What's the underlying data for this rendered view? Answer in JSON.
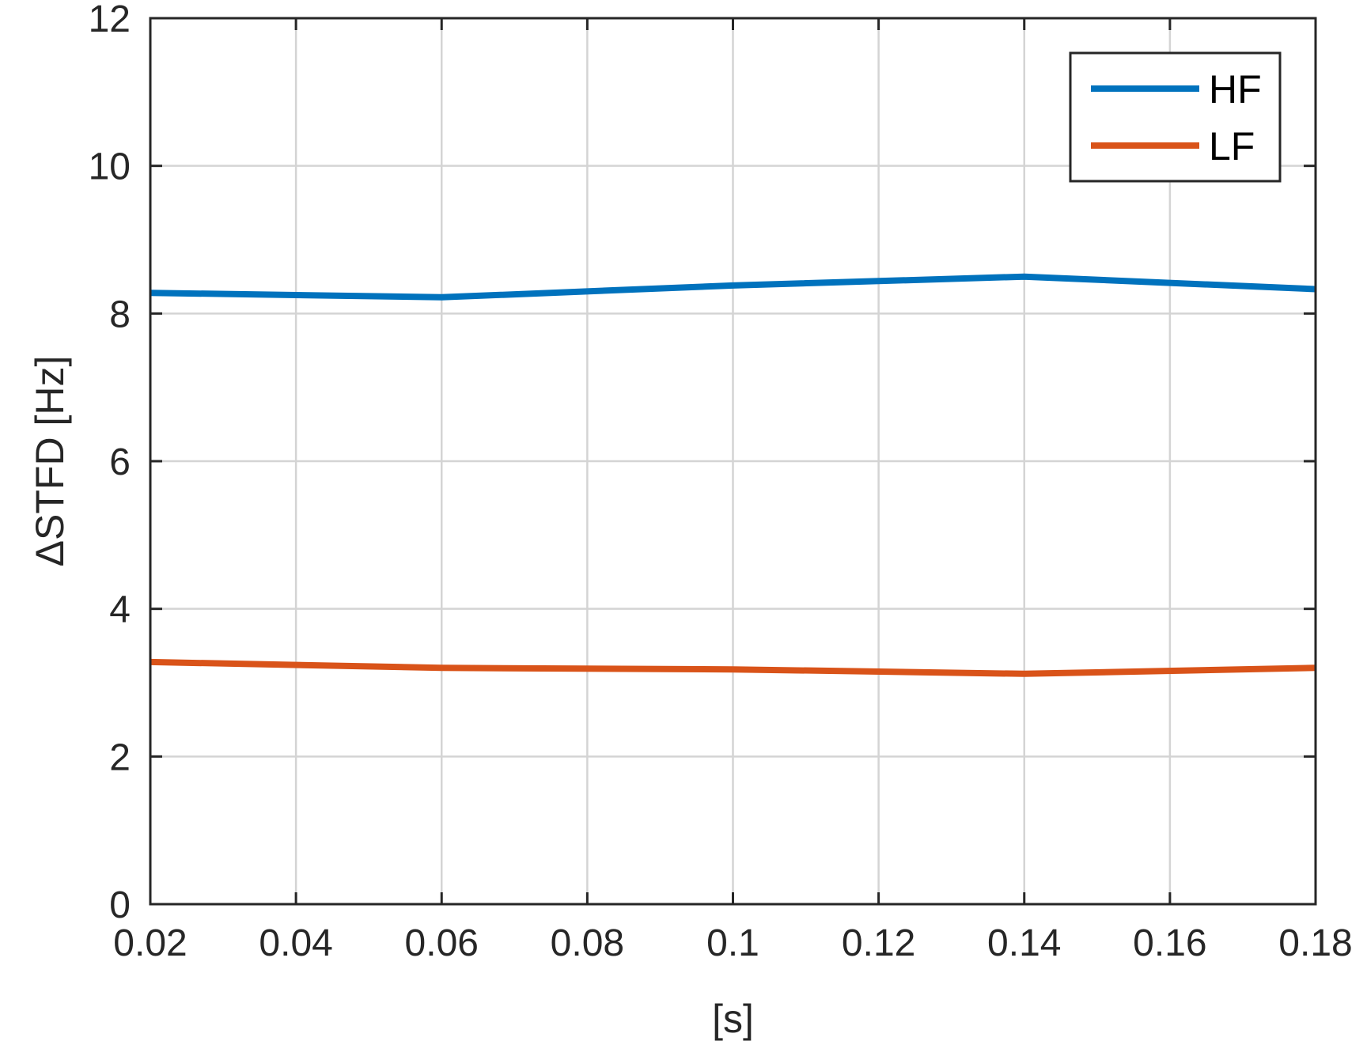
{
  "chart_data": {
    "type": "line",
    "xlabel": "[s]",
    "ylabel": "ΔSTFD [Hz]",
    "xlim": [
      0.02,
      0.18
    ],
    "ylim": [
      0,
      12
    ],
    "xticks": [
      0.02,
      0.04,
      0.06,
      0.08,
      0.1,
      0.12,
      0.14,
      0.16,
      0.18
    ],
    "xtick_labels": [
      "0.02",
      "0.04",
      "0.06",
      "0.08",
      "0.1",
      "0.12",
      "0.14",
      "0.16",
      "0.18"
    ],
    "yticks": [
      0,
      2,
      4,
      6,
      8,
      10,
      12
    ],
    "ytick_labels": [
      "0",
      "2",
      "4",
      "6",
      "8",
      "10",
      "12"
    ],
    "grid": true,
    "legend_position": "top-right",
    "series": [
      {
        "name": "HF",
        "color": "#0072BD",
        "x": [
          0.02,
          0.06,
          0.1,
          0.14,
          0.18
        ],
        "values": [
          8.28,
          8.22,
          8.38,
          8.5,
          8.33
        ]
      },
      {
        "name": "LF",
        "color": "#D95319",
        "x": [
          0.02,
          0.06,
          0.1,
          0.14,
          0.18
        ],
        "values": [
          3.28,
          3.2,
          3.18,
          3.12,
          3.2
        ]
      }
    ]
  }
}
